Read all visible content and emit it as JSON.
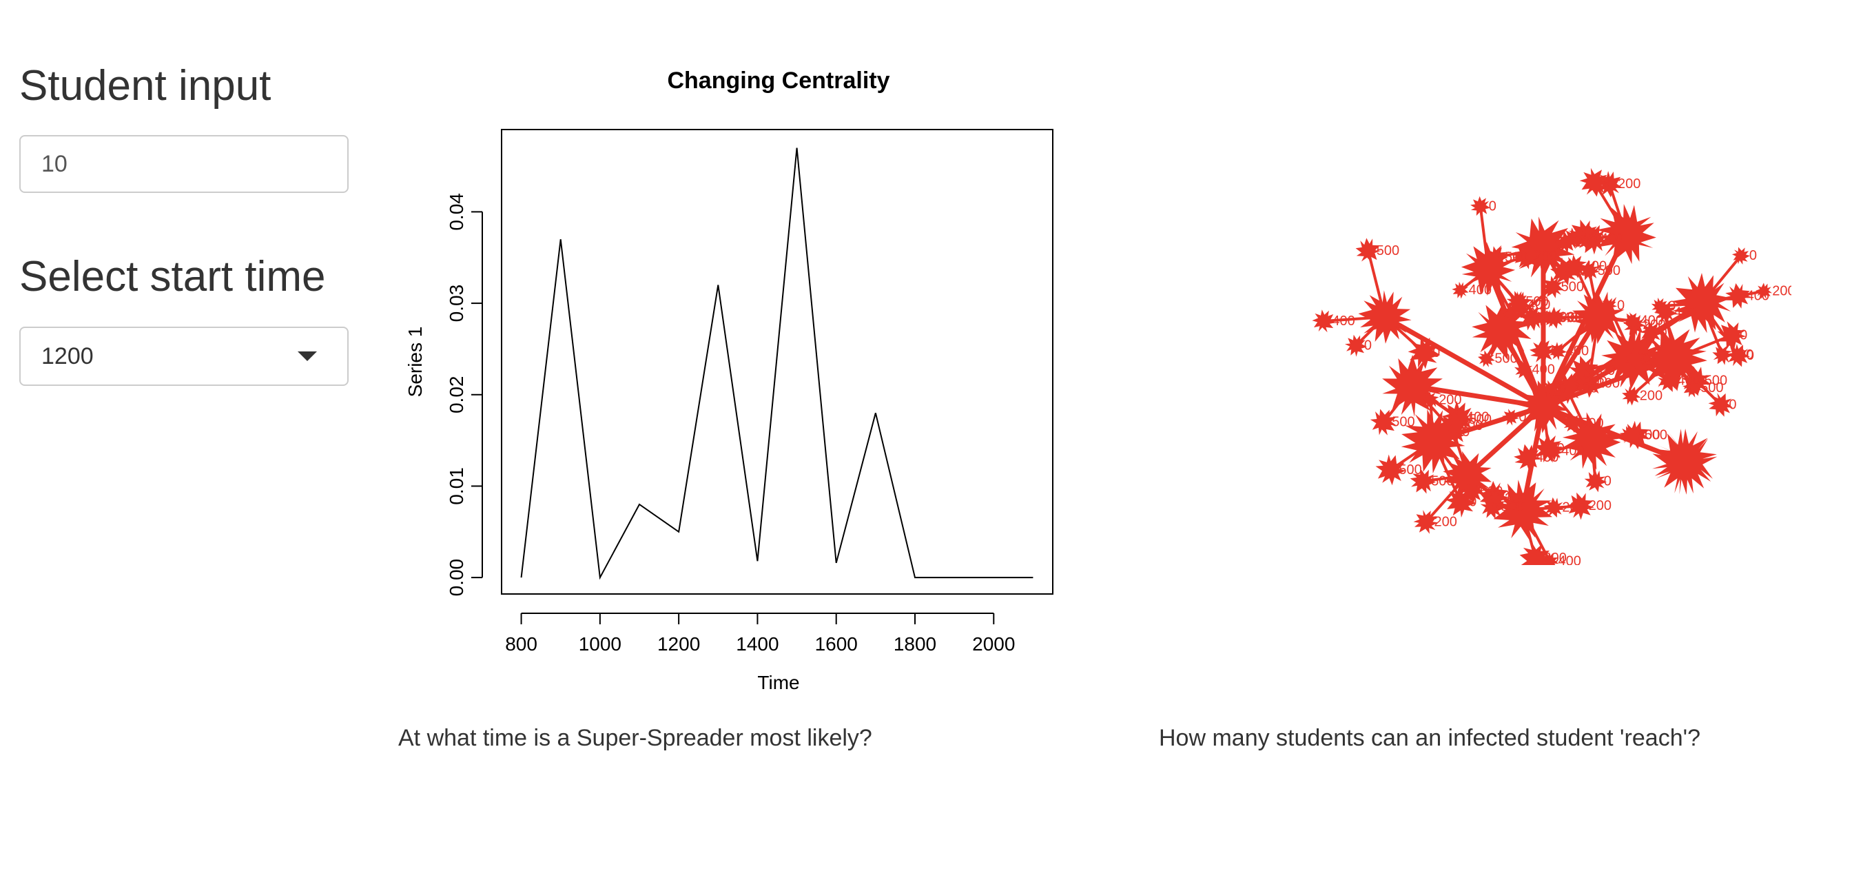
{
  "sidebar": {
    "student_input_title": "Student input",
    "student_input_value": "10",
    "start_time_title": "Select start time",
    "start_time_selected": "1200"
  },
  "captions": {
    "left": "At what time is a Super-Spreader most likely?",
    "right": "How many students can an infected student 'reach'?"
  },
  "network": {
    "color": "#e8352a",
    "node_label_values": [
      "400",
      "200",
      "500",
      "0"
    ]
  },
  "chart_data": {
    "type": "line",
    "title": "Changing Centrality",
    "xlabel": "Time",
    "ylabel": "Series 1",
    "x": [
      800,
      900,
      1000,
      1100,
      1200,
      1300,
      1400,
      1500,
      1600,
      1700,
      1800,
      1900,
      2000,
      2100
    ],
    "series": [
      {
        "values": [
          0.0,
          0.037,
          0.0,
          0.008,
          0.005,
          0.032,
          0.0018,
          0.047,
          0.0016,
          0.018,
          0.0,
          0.0,
          0.0,
          0.0
        ]
      }
    ],
    "xlim": [
      750,
      2150
    ],
    "ylim": [
      -0.0018,
      0.049
    ],
    "xticks": [
      "800",
      "1000",
      "1200",
      "1400",
      "1600",
      "1800",
      "2000"
    ],
    "yticks": [
      "0.00",
      "0.01",
      "0.02",
      "0.03",
      "0.04"
    ],
    "grid": false,
    "line_color": "#000000"
  }
}
